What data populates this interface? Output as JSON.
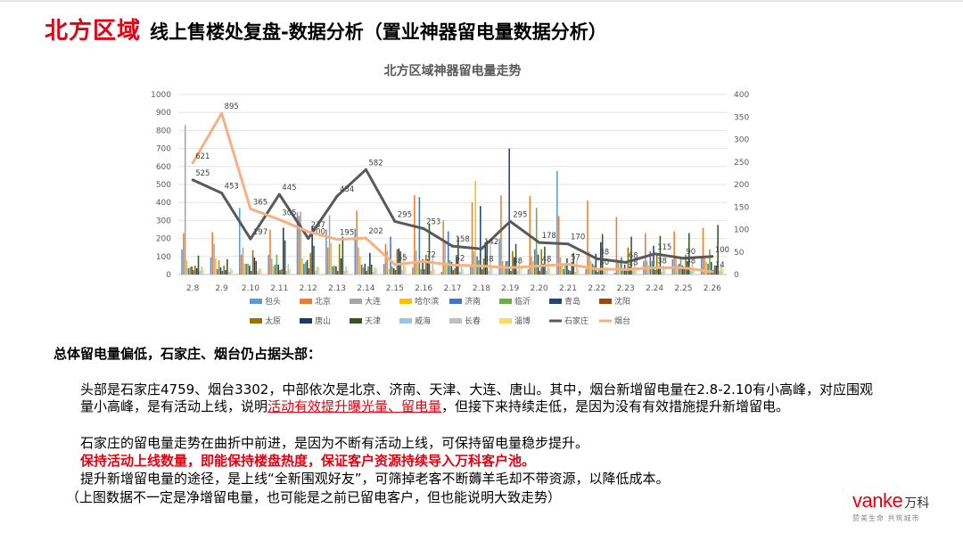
{
  "header": {
    "region": "北方区域",
    "title": "线上售楼处复盘-数据分析（置业神器留电量数据分析）"
  },
  "chart_data": {
    "type": "bar",
    "title": "北方区域神器留电量走势",
    "categories": [
      "2.8",
      "2.9",
      "2.10",
      "2.11",
      "2.12",
      "2.13",
      "2.14",
      "2.15",
      "2.16",
      "2.17",
      "2.18",
      "2.19",
      "2.20",
      "2.21",
      "2.22",
      "2.23",
      "2.24",
      "2.25",
      "2.26"
    ],
    "y_left": {
      "min": 0,
      "max": 1000,
      "ticks": [
        0,
        100,
        200,
        300,
        400,
        500,
        600,
        700,
        800,
        900,
        1000
      ]
    },
    "y_right": {
      "min": 0,
      "max": 400,
      "ticks": [
        0,
        50,
        100,
        150,
        200,
        250,
        300,
        350,
        400
      ]
    },
    "grid": true,
    "legend_placement": "bottom",
    "bar_series": [
      {
        "name": "包头",
        "color": "#5b9bd5",
        "values": [
          140,
          95,
          370,
          110,
          345,
          250,
          255,
          60,
          40,
          15,
          55,
          200,
          30,
          575,
          30,
          10,
          75,
          85,
          90
        ]
      },
      {
        "name": "北京",
        "color": "#ed7d31",
        "values": [
          230,
          235,
          110,
          250,
          325,
          150,
          355,
          170,
          440,
          300,
          400,
          440,
          435,
          325,
          410,
          320,
          230,
          240,
          260
        ]
      },
      {
        "name": "大连",
        "color": "#a5a5a5",
        "values": [
          830,
          170,
          150,
          90,
          350,
          330,
          150,
          130,
          135,
          190,
          130,
          75,
          100,
          95,
          125,
          80,
          75,
          105,
          95
        ]
      },
      {
        "name": "哈尔滨",
        "color": "#ffc000",
        "values": [
          80,
          90,
          60,
          45,
          90,
          175,
          100,
          30,
          70,
          55,
          520,
          50,
          75,
          55,
          75,
          75,
          50,
          55,
          70
        ]
      },
      {
        "name": "济南",
        "color": "#4472c4",
        "values": [
          35,
          30,
          60,
          55,
          60,
          45,
          55,
          210,
          430,
          240,
          100,
          75,
          140,
          30,
          60,
          95,
          130,
          60,
          60
        ]
      },
      {
        "name": "临沂",
        "color": "#70ad47",
        "values": [
          40,
          80,
          60,
          110,
          70,
          50,
          40,
          45,
          30,
          80,
          80,
          75,
          370,
          60,
          50,
          30,
          75,
          90,
          140
        ]
      },
      {
        "name": "青岛",
        "color": "#264478",
        "values": [
          45,
          40,
          50,
          55,
          80,
          45,
          60,
          35,
          85,
          70,
          380,
          700,
          110,
          90,
          115,
          55,
          160,
          50,
          70
        ]
      },
      {
        "name": "沈阳",
        "color": "#9e480e",
        "values": [
          25,
          20,
          20,
          25,
          35,
          20,
          20,
          25,
          30,
          25,
          30,
          20,
          20,
          25,
          15,
          20,
          25,
          30,
          25
        ]
      },
      {
        "name": "太原",
        "color": "#997300",
        "values": [
          50,
          50,
          135,
          30,
          120,
          170,
          45,
          140,
          110,
          35,
          90,
          130,
          140,
          20,
          30,
          150,
          120,
          110,
          50
        ]
      },
      {
        "name": "唐山",
        "color": "#203864",
        "values": [
          35,
          25,
          95,
          260,
          270,
          90,
          120,
          145,
          85,
          100,
          180,
          95,
          60,
          70,
          180,
          45,
          45,
          75,
          50
        ]
      },
      {
        "name": "天津",
        "color": "#375623",
        "values": [
          105,
          85,
          75,
          190,
          160,
          210,
          55,
          130,
          280,
          210,
          190,
          170,
          155,
          120,
          225,
          210,
          215,
          230,
          275
        ]
      },
      {
        "name": "威海",
        "color": "#9dc3e6",
        "values": [
          20,
          15,
          20,
          20,
          20,
          20,
          15,
          25,
          20,
          15,
          20,
          20,
          20,
          15,
          20,
          20,
          15,
          20,
          20
        ]
      },
      {
        "name": "长春",
        "color": "#bfbfbf",
        "values": [
          45,
          35,
          35,
          60,
          45,
          45,
          40,
          120,
          100,
          50,
          170,
          85,
          90,
          80,
          40,
          60,
          50,
          70,
          55
        ]
      },
      {
        "name": "淄博",
        "color": "#ffd966",
        "values": [
          30,
          25,
          30,
          30,
          40,
          25,
          35,
          45,
          35,
          30,
          45,
          45,
          35,
          30,
          30,
          35,
          40,
          35,
          30
        ]
      }
    ],
    "line_series": [
      {
        "name": "石家庄",
        "color": "#595959",
        "axis": "right",
        "values": [
          210,
          181,
          79,
          178,
          80,
          174,
          233,
          118,
          102,
          63,
          57,
          118,
          71,
          68,
          35,
          27,
          46,
          36,
          40
        ],
        "labels": [
          "525",
          "453",
          "197",
          "445",
          "200",
          "434",
          "582",
          "295",
          "253",
          "158",
          "142",
          "295",
          "178",
          "170",
          "88",
          "68",
          "115",
          "90",
          "100"
        ]
      },
      {
        "name": "烟台",
        "color": "#f4b183",
        "axis": "right",
        "values": [
          248,
          358,
          146,
          122,
          95,
          78,
          81,
          22,
          29,
          21,
          19,
          15,
          19,
          23,
          12,
          11,
          15,
          15,
          6
        ],
        "labels": [
          "621",
          "895",
          "365",
          "305",
          "237",
          "195",
          "202",
          "55",
          "72",
          "52",
          "48",
          "38",
          "48",
          "57",
          "30",
          "28",
          "38",
          "38",
          "14"
        ]
      }
    ]
  },
  "summary_title": "总体留电量偏低，石家庄、烟台仍占据头部：",
  "paragraphs": {
    "p1_a": "头部是石家庄4759、烟台3302，中部依次是北京、济南、天津、大连、唐山。其中，烟台新增留电量在2.8-2.10有小高峰，对应围观量小高峰，是有活动上线，说明",
    "p1_highlight": "活动有效提升曝光量、留电量",
    "p1_b": "，但接下来持续走低，是因为没有有效措施提升新增留电。",
    "p2": "石家庄的留电量走势在曲折中前进，是因为不断有活动上线，可保持留电量稳步提升。",
    "p3": "保持活动上线数量，即能保持楼盘热度，保证客户资源持续导入万科客户池。",
    "p4": "提升新增留电量的途径，是上线“全新围观好友”，可筛掉老客不断薅羊毛却不带资源，以降低成本。",
    "p5": "（上图数据不一定是净增留电量，也可能是之前已留电客户，但也能说明大致走势）"
  },
  "logo": {
    "word": "vanke",
    "cn": "万科",
    "tagline": "赞美生命 共筑城市"
  }
}
